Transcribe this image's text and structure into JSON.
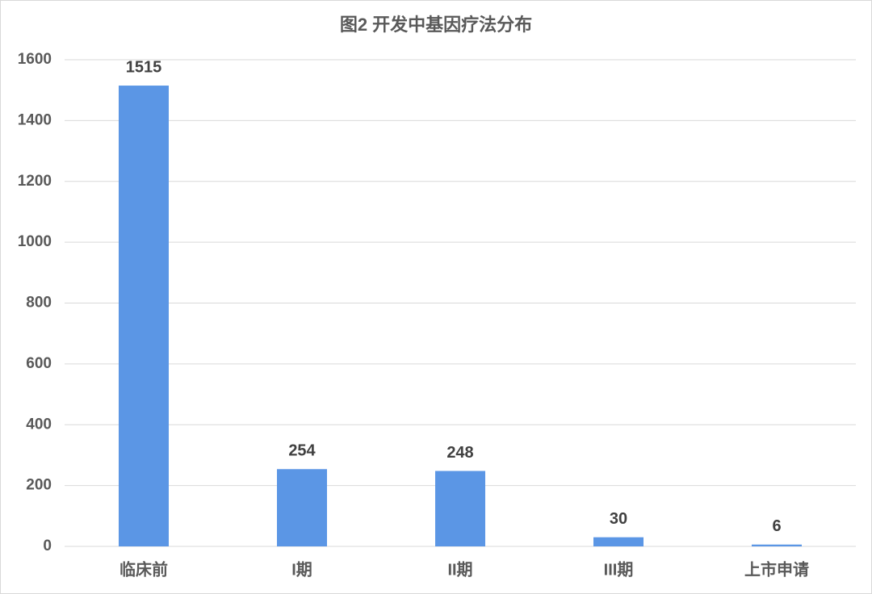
{
  "chart_data": {
    "type": "bar",
    "title": "图2  开发中基因疗法分布",
    "categories": [
      "临床前",
      "I期",
      "II期",
      "III期",
      "上市申请"
    ],
    "values": [
      1515,
      254,
      248,
      30,
      6
    ],
    "color": "#5b96e5",
    "ylim": [
      0,
      1600
    ],
    "yticks": [
      0,
      200,
      400,
      600,
      800,
      1000,
      1200,
      1400,
      1600
    ],
    "grid": true,
    "data_labels": true
  }
}
